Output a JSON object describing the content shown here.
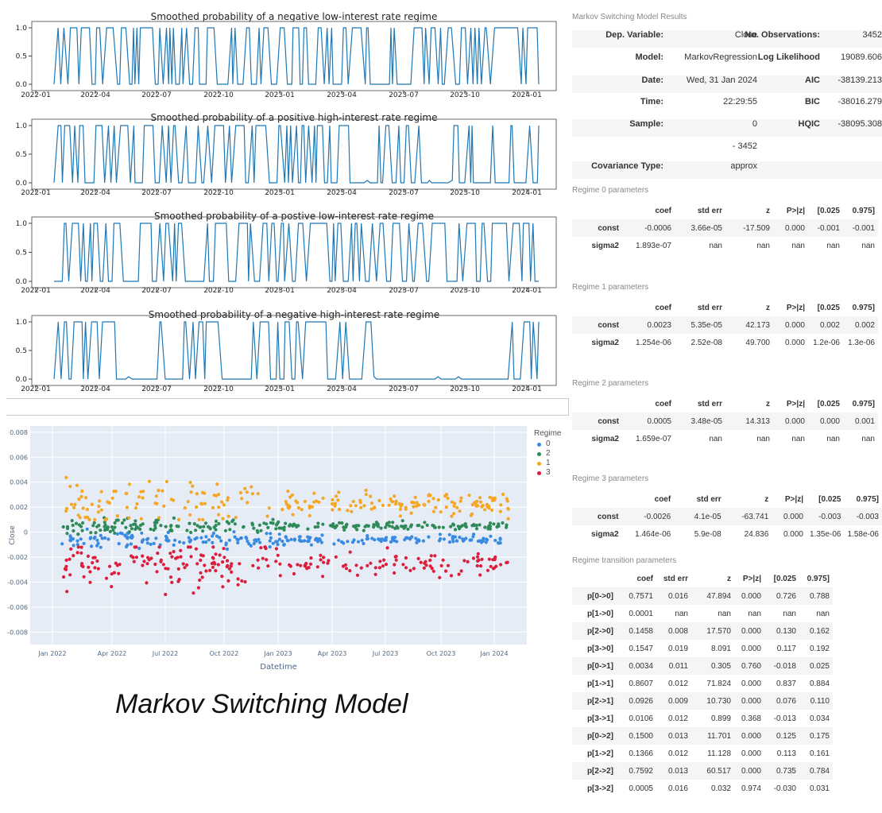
{
  "chart_data": [
    {
      "type": "line",
      "title": "Smoothed probability of a negative low-interest rate regime",
      "x_ticks": [
        "2022-01",
        "2022-04",
        "2022-07",
        "2022-10",
        "2023-01",
        "2023-04",
        "2023-07",
        "2023-10",
        "2024-01"
      ],
      "y_ticks": [
        "0.0",
        "0.5",
        "1.0"
      ],
      "ylim": [
        0,
        1
      ],
      "color": "#1f77b4"
    },
    {
      "type": "line",
      "title": "Smoothed probability of a positive high-interest rate regime",
      "x_ticks": [
        "2022-01",
        "2022-04",
        "2022-07",
        "2022-10",
        "2023-01",
        "2023-04",
        "2023-07",
        "2023-10",
        "2024-01"
      ],
      "y_ticks": [
        "0.0",
        "0.5",
        "1.0"
      ],
      "ylim": [
        0,
        1
      ],
      "color": "#1f77b4"
    },
    {
      "type": "line",
      "title": "Smoothed probability of a postive low-interest rate regime",
      "x_ticks": [
        "2022-01",
        "2022-04",
        "2022-07",
        "2022-10",
        "2023-01",
        "2023-04",
        "2023-07",
        "2023-10",
        "2024-01"
      ],
      "y_ticks": [
        "0.0",
        "0.5",
        "1.0"
      ],
      "ylim": [
        0,
        1
      ],
      "color": "#1f77b4"
    },
    {
      "type": "line",
      "title": "Smoothed probability of a negative high-interest rate regime",
      "x_ticks": [
        "2022-01",
        "2022-04",
        "2022-07",
        "2022-10",
        "2023-01",
        "2023-04",
        "2023-07",
        "2023-10",
        "2024-01"
      ],
      "y_ticks": [
        "0.0",
        "0.5",
        "1.0"
      ],
      "ylim": [
        0,
        1
      ],
      "color": "#1f77b4"
    },
    {
      "type": "scatter",
      "xlabel": "Datetime",
      "ylabel": "Close",
      "x_ticks": [
        "Jan 2022",
        "Apr 2022",
        "Jul 2022",
        "Oct 2022",
        "Jan 2023",
        "Apr 2023",
        "Jul 2023",
        "Oct 2023",
        "Jan 2024"
      ],
      "y_ticks": [
        "0.008",
        "0.006",
        "0.004",
        "0.002",
        "0",
        "-0.002",
        "-0.004",
        "-0.006",
        "-0.008"
      ],
      "ylim": [
        -0.009,
        0.0085
      ],
      "legend_title": "Regime",
      "legend": [
        {
          "name": "0",
          "color": "#3a8be0"
        },
        {
          "name": "2",
          "color": "#2e8b57"
        },
        {
          "name": "1",
          "color": "#f5a623"
        },
        {
          "name": "3",
          "color": "#dc1e3c"
        }
      ],
      "series": [
        {
          "regime": "0",
          "center": -0.0006,
          "spread": 0.0004
        },
        {
          "regime": "2",
          "center": 0.0005,
          "spread": 0.0004
        },
        {
          "regime": "1",
          "center": 0.0023,
          "spread": 0.0012
        },
        {
          "regime": "3",
          "center": -0.0026,
          "spread": 0.0012
        }
      ]
    }
  ],
  "results": {
    "title": "Markov Switching Model Results",
    "summary": [
      {
        "l1": "Dep. Variable:",
        "v1": "Close",
        "l2": "No. Observations:",
        "v2": "3452"
      },
      {
        "l1": "Model:",
        "v1": "MarkovRegression",
        "l2": "Log Likelihood",
        "v2": "19089.606"
      },
      {
        "l1": "Date:",
        "v1": "Wed, 31 Jan 2024",
        "l2": "AIC",
        "v2": "-38139.213"
      },
      {
        "l1": "Time:",
        "v1": "22:29:55",
        "l2": "BIC",
        "v2": "-38016.279"
      },
      {
        "l1": "Sample:",
        "v1": "0",
        "l2": "HQIC",
        "v2": "-38095.308"
      },
      {
        "l1": "",
        "v1": "- 3452",
        "l2": "",
        "v2": ""
      },
      {
        "l1": "Covariance Type:",
        "v1": "approx",
        "l2": "",
        "v2": ""
      }
    ],
    "columns": [
      "",
      "coef",
      "std err",
      "z",
      "P>|z|",
      "[0.025",
      "0.975]"
    ],
    "regimes": [
      {
        "name": "Regime 0 parameters",
        "rows": [
          [
            "const",
            "-0.0006",
            "3.66e-05",
            "-17.509",
            "0.000",
            "-0.001",
            "-0.001"
          ],
          [
            "sigma2",
            "1.893e-07",
            "nan",
            "nan",
            "nan",
            "nan",
            "nan"
          ]
        ]
      },
      {
        "name": "Regime 1 parameters",
        "rows": [
          [
            "const",
            "0.0023",
            "5.35e-05",
            "42.173",
            "0.000",
            "0.002",
            "0.002"
          ],
          [
            "sigma2",
            "1.254e-06",
            "2.52e-08",
            "49.700",
            "0.000",
            "1.2e-06",
            "1.3e-06"
          ]
        ]
      },
      {
        "name": "Regime 2 parameters",
        "rows": [
          [
            "const",
            "0.0005",
            "3.48e-05",
            "14.313",
            "0.000",
            "0.000",
            "0.001"
          ],
          [
            "sigma2",
            "1.659e-07",
            "nan",
            "nan",
            "nan",
            "nan",
            "nan"
          ]
        ]
      },
      {
        "name": "Regime 3 parameters",
        "rows": [
          [
            "const",
            "-0.0026",
            "4.1e-05",
            "-63.741",
            "0.000",
            "-0.003",
            "-0.003"
          ],
          [
            "sigma2",
            "1.464e-06",
            "5.9e-08",
            "24.836",
            "0.000",
            "1.35e-06",
            "1.58e-06"
          ]
        ]
      }
    ],
    "transition": {
      "name": "Regime transition parameters",
      "rows": [
        [
          "p[0->0]",
          "0.7571",
          "0.016",
          "47.894",
          "0.000",
          "0.726",
          "0.788"
        ],
        [
          "p[1->0]",
          "0.0001",
          "nan",
          "nan",
          "nan",
          "nan",
          "nan"
        ],
        [
          "p[2->0]",
          "0.1458",
          "0.008",
          "17.570",
          "0.000",
          "0.130",
          "0.162"
        ],
        [
          "p[3->0]",
          "0.1547",
          "0.019",
          "8.091",
          "0.000",
          "0.117",
          "0.192"
        ],
        [
          "p[0->1]",
          "0.0034",
          "0.011",
          "0.305",
          "0.760",
          "-0.018",
          "0.025"
        ],
        [
          "p[1->1]",
          "0.8607",
          "0.012",
          "71.824",
          "0.000",
          "0.837",
          "0.884"
        ],
        [
          "p[2->1]",
          "0.0926",
          "0.009",
          "10.730",
          "0.000",
          "0.076",
          "0.110"
        ],
        [
          "p[3->1]",
          "0.0106",
          "0.012",
          "0.899",
          "0.368",
          "-0.013",
          "0.034"
        ],
        [
          "p[0->2]",
          "0.1500",
          "0.013",
          "11.701",
          "0.000",
          "0.125",
          "0.175"
        ],
        [
          "p[1->2]",
          "0.1366",
          "0.012",
          "11.128",
          "0.000",
          "0.113",
          "0.161"
        ],
        [
          "p[2->2]",
          "0.7592",
          "0.013",
          "60.517",
          "0.000",
          "0.735",
          "0.784"
        ],
        [
          "p[3->2]",
          "0.0005",
          "0.016",
          "0.032",
          "0.974",
          "-0.030",
          "0.031"
        ]
      ]
    }
  },
  "caption": "Markov Switching Model"
}
